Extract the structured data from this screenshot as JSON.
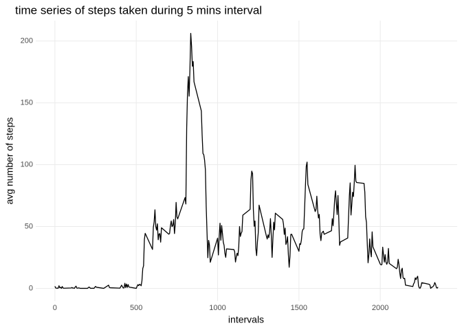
{
  "chart_data": {
    "type": "line",
    "title": "time series of steps taken during 5 mins interval",
    "x_label": "intervals",
    "y_label": "avg number of steps",
    "x": [
      0,
      5,
      10,
      15,
      20,
      25,
      30,
      35,
      40,
      45,
      50,
      55,
      100,
      105,
      110,
      115,
      120,
      125,
      130,
      135,
      140,
      145,
      150,
      155,
      200,
      210,
      220,
      230,
      240,
      250,
      255,
      300,
      330,
      335,
      340,
      400,
      410,
      420,
      425,
      430,
      435,
      440,
      445,
      450,
      455,
      500,
      505,
      510,
      515,
      520,
      525,
      530,
      535,
      540,
      545,
      550,
      555,
      600,
      605,
      610,
      615,
      620,
      625,
      630,
      635,
      640,
      645,
      650,
      655,
      700,
      705,
      710,
      715,
      720,
      725,
      730,
      735,
      740,
      745,
      750,
      755,
      800,
      805,
      810,
      815,
      820,
      825,
      830,
      835,
      840,
      845,
      850,
      855,
      900,
      905,
      910,
      915,
      920,
      925,
      930,
      935,
      940,
      945,
      950,
      955,
      1000,
      1005,
      1010,
      1015,
      1020,
      1025,
      1030,
      1035,
      1040,
      1045,
      1050,
      1055,
      1100,
      1105,
      1110,
      1115,
      1120,
      1125,
      1130,
      1135,
      1140,
      1145,
      1150,
      1155,
      1200,
      1205,
      1210,
      1215,
      1220,
      1225,
      1230,
      1235,
      1240,
      1245,
      1250,
      1255,
      1300,
      1305,
      1310,
      1315,
      1320,
      1325,
      1330,
      1335,
      1340,
      1345,
      1350,
      1355,
      1400,
      1405,
      1410,
      1415,
      1420,
      1425,
      1430,
      1435,
      1440,
      1445,
      1450,
      1455,
      1500,
      1505,
      1510,
      1515,
      1520,
      1525,
      1530,
      1535,
      1540,
      1545,
      1550,
      1555,
      1600,
      1605,
      1610,
      1615,
      1620,
      1625,
      1630,
      1635,
      1640,
      1645,
      1650,
      1655,
      1700,
      1705,
      1710,
      1715,
      1720,
      1725,
      1730,
      1735,
      1740,
      1745,
      1750,
      1755,
      1800,
      1805,
      1810,
      1815,
      1820,
      1825,
      1830,
      1835,
      1840,
      1845,
      1850,
      1855,
      1900,
      1905,
      1910,
      1915,
      1920,
      1925,
      1930,
      1935,
      1940,
      1945,
      1950,
      1955,
      2000,
      2005,
      2010,
      2015,
      2020,
      2025,
      2030,
      2035,
      2040,
      2045,
      2050,
      2055,
      2100,
      2105,
      2110,
      2115,
      2120,
      2125,
      2130,
      2135,
      2140,
      2145,
      2150,
      2155,
      2200,
      2205,
      2210,
      2215,
      2220,
      2225,
      2230,
      2235,
      2240,
      2245,
      2250,
      2255,
      2300,
      2305,
      2310,
      2315,
      2320,
      2325,
      2330,
      2335,
      2340,
      2345,
      2350,
      2355
    ],
    "series": [
      {
        "color": "#000000",
        "values": [
          1.7,
          0.3,
          0.1,
          0.2,
          0.1,
          2.1,
          0.5,
          0.9,
          0,
          1.5,
          0.3,
          0.1,
          0.3,
          0.7,
          0.2,
          0.3,
          0,
          1.1,
          1.8,
          0.2,
          0.2,
          0.4,
          0.3,
          0,
          0,
          1.1,
          0,
          0.1,
          0,
          1.6,
          0.9,
          0,
          2.6,
          0.7,
          0.5,
          0.2,
          2.6,
          0.3,
          0.4,
          4.1,
          0.7,
          3.5,
          0.8,
          3.1,
          1.1,
          0,
          1.6,
          3.0,
          2.2,
          3.3,
          3.0,
          2.1,
          6.1,
          16.0,
          18.3,
          39.5,
          44.5,
          31.5,
          49.3,
          53.8,
          63.5,
          50.0,
          47.1,
          52.2,
          39.3,
          44.0,
          44.2,
          37.4,
          49.0,
          43.8,
          44.4,
          50.5,
          54.5,
          49.9,
          50.9,
          55.7,
          44.3,
          52.3,
          69.5,
          57.8,
          56.2,
          73.4,
          68.2,
          129.4,
          157.5,
          171.2,
          155.4,
          177.3,
          206.2,
          195.9,
          179.6,
          183.4,
          167.0,
          143.5,
          124.0,
          109.1,
          108.1,
          103.7,
          96.0,
          66.2,
          45.2,
          24.8,
          38.8,
          35.0,
          21.1,
          40.6,
          27.0,
          42.4,
          52.7,
          38.9,
          50.8,
          44.3,
          37.4,
          34.7,
          28.3,
          25.1,
          31.9,
          31.4,
          29.7,
          21.3,
          25.5,
          28.4,
          26.5,
          33.4,
          50.0,
          42.0,
          44.6,
          46.0,
          59.2,
          63.9,
          87.7,
          94.8,
          92.8,
          63.4,
          50.2,
          54.5,
          32.4,
          26.5,
          37.7,
          45.1,
          67.3,
          42.3,
          39.9,
          43.3,
          41.0,
          46.2,
          56.4,
          42.8,
          25.1,
          40.0,
          53.5,
          47.3,
          60.8,
          55.8,
          52.0,
          43.6,
          48.7,
          35.5,
          37.5,
          41.8,
          27.5,
          17.1,
          26.1,
          43.6,
          43.8,
          30.0,
          36.1,
          35.5,
          38.8,
          46.0,
          47.8,
          48.1,
          65.3,
          82.9,
          98.7,
          102.1,
          84.0,
          62.1,
          64.1,
          74.5,
          63.2,
          56.9,
          59.8,
          43.9,
          38.6,
          44.7,
          45.5,
          46.2,
          43.7,
          46.6,
          56.3,
          50.7,
          61.2,
          72.7,
          78.9,
          68.9,
          59.7,
          75.1,
          56.5,
          34.8,
          37.5,
          40.7,
          58.0,
          74.7,
          85.3,
          59.3,
          67.8,
          77.7,
          74.2,
          85.3,
          99.5,
          86.6,
          85.6,
          84.9,
          77.8,
          58.0,
          53.4,
          36.3,
          20.7,
          27.4,
          40.0,
          30.2,
          25.5,
          45.7,
          33.5,
          19.6,
          19.0,
          19.3,
          33.3,
          26.8,
          21.2,
          27.3,
          21.3,
          19.5,
          21.3,
          32.3,
          20.2,
          15.9,
          17.2,
          23.5,
          19.2,
          12.5,
          8.0,
          14.7,
          16.3,
          8.7,
          7.8,
          8.1,
          2.6,
          1.5,
          3.7,
          4.8,
          8.5,
          7.1,
          8.7,
          9.8,
          2.2,
          0.3,
          0.1,
          1.6,
          4.6,
          3.3,
          2.8,
          0,
          0.8,
          1.0,
          1.6,
          2.6,
          4.7,
          3.3,
          0.6,
          0.2,
          1.1
        ]
      }
    ],
    "xlim": [
      -117.75,
      2472.75
    ],
    "xticks": [
      0,
      500,
      1000,
      1500,
      2000
    ],
    "ylim": [
      -10.31,
      216.48
    ],
    "yticks": [
      0,
      50,
      100,
      150,
      200
    ],
    "grid": true
  }
}
